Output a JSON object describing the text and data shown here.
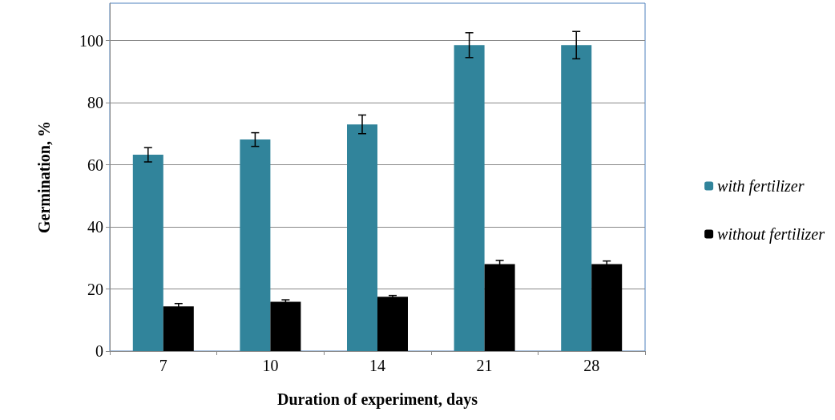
{
  "chart_data": {
    "type": "bar",
    "xlabel": "Duration of experiment, days",
    "ylabel": "Germination, %",
    "categories": [
      "7",
      "10",
      "14",
      "21",
      "28"
    ],
    "series": [
      {
        "name": "with fertilizer",
        "color": "#31849b",
        "values": [
          63.2,
          68.1,
          73,
          98.5,
          98.5
        ],
        "errors": [
          2.3,
          2.2,
          3,
          4,
          4.4
        ]
      },
      {
        "name": "without fertilizer",
        "color": "#000000",
        "values": [
          14.4,
          15.9,
          17.5,
          28,
          28
        ],
        "errors": [
          0.9,
          0.6,
          0.4,
          1.2,
          1
        ]
      }
    ],
    "ylim": [
      0,
      112
    ],
    "yticks": [
      0,
      20,
      40,
      60,
      80,
      100
    ],
    "grid": "y",
    "legend": "right"
  }
}
